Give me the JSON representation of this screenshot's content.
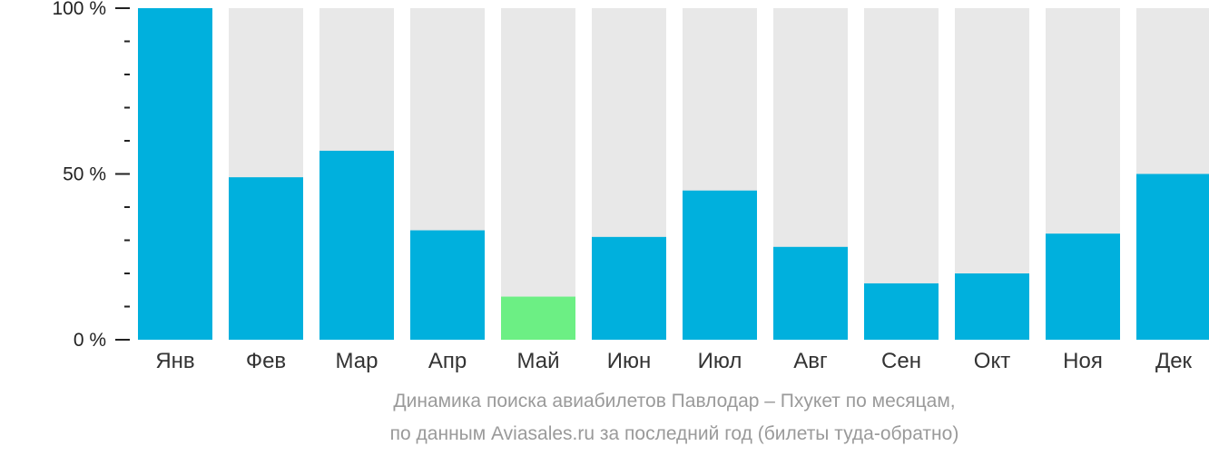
{
  "chart_data": {
    "type": "bar",
    "categories": [
      "Янв",
      "Фев",
      "Мар",
      "Апр",
      "Май",
      "Июн",
      "Июл",
      "Авг",
      "Сен",
      "Окт",
      "Ноя",
      "Дек"
    ],
    "values": [
      100,
      49,
      57,
      33,
      13,
      31,
      45,
      28,
      17,
      20,
      32,
      50
    ],
    "ylim": [
      0,
      100
    ],
    "yticks": [
      "0 %",
      "50 %",
      "100 %"
    ],
    "colors": {
      "bar": "#00b0dd",
      "highlight": "#6cef84",
      "background": "#e8e8e8"
    },
    "highlight_index": 4
  },
  "caption": {
    "line1": "Динамика поиска авиабилетов Павлодар – Пхукет по месяцам,",
    "line2": "по данным Aviasales.ru за последний год (билеты туда-обратно)"
  }
}
